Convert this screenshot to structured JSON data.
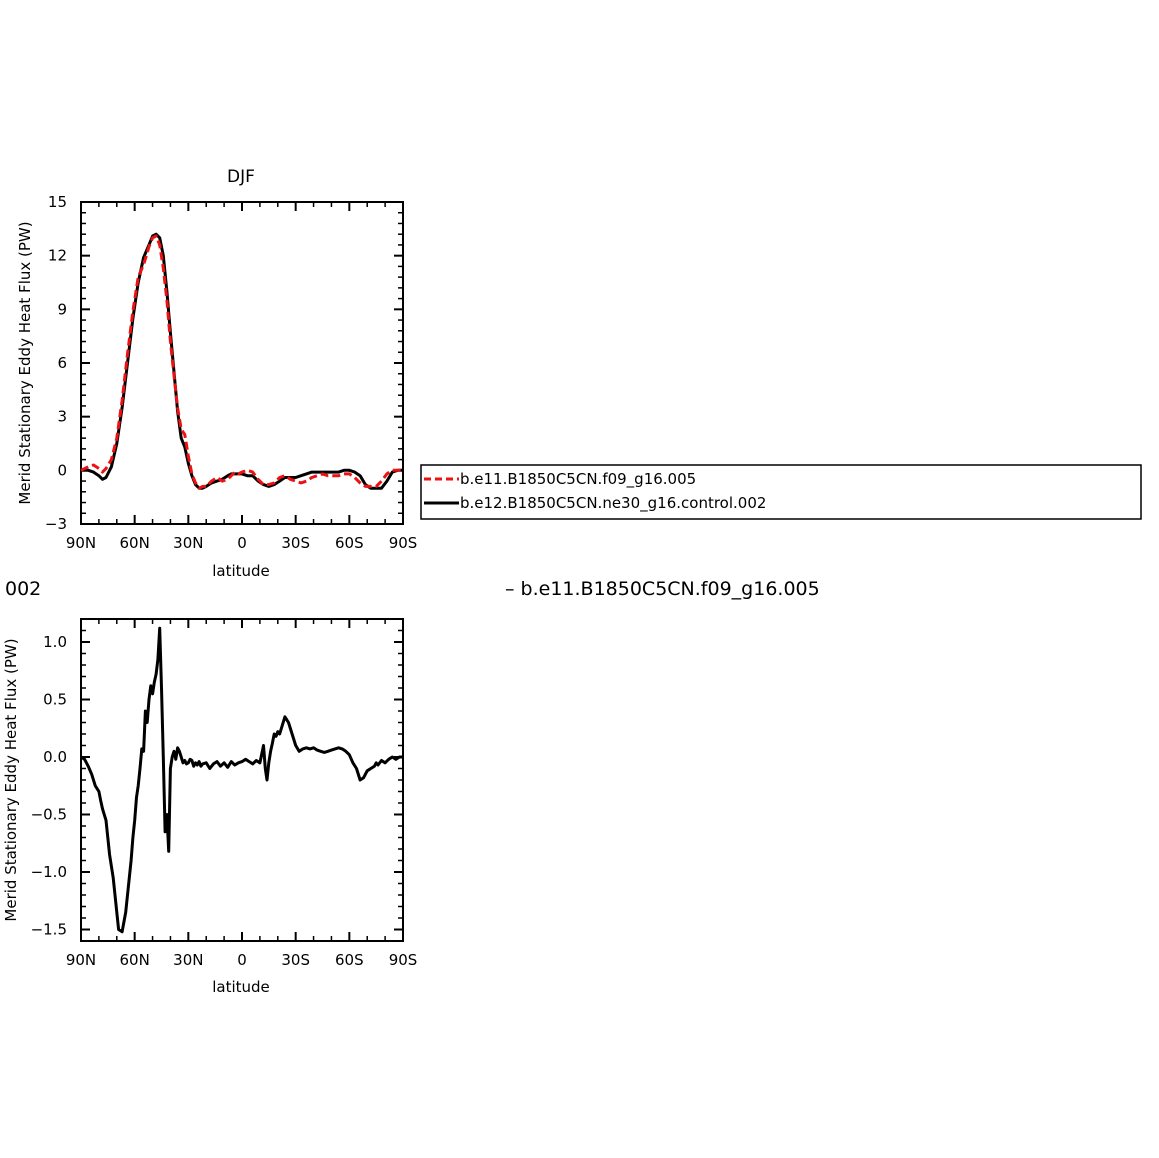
{
  "chart_data": [
    {
      "type": "line",
      "title": "DJF",
      "xlabel": "latitude",
      "ylabel": "Merid Stationary Eddy Heat Flux (PW)",
      "xlim": [
        -90,
        90
      ],
      "ylim": [
        -3,
        15
      ],
      "xticks": [
        -90,
        -60,
        -30,
        0,
        30,
        60,
        90
      ],
      "xtick_labels": [
        "90N",
        "60N",
        "30N",
        "0",
        "30S",
        "60S",
        "90S"
      ],
      "yticks": [
        -3,
        0,
        3,
        6,
        9,
        12,
        15
      ],
      "ytick_labels": [
        "−3",
        "0",
        "3",
        "6",
        "9",
        "12",
        "15"
      ],
      "grid": false,
      "legend_position": "right of plot",
      "series": [
        {
          "name": "b.e11.B1850C5CN.f09_g16.005",
          "color": "#ee1111",
          "dash": true,
          "x": [
            -90,
            -86,
            -83,
            -80,
            -78,
            -76,
            -73,
            -70,
            -67,
            -64,
            -61,
            -58,
            -55,
            -52,
            -50,
            -48,
            -46,
            -44,
            -42,
            -40,
            -38,
            -36,
            -34,
            -32,
            -30,
            -28,
            -26,
            -24,
            -22,
            -20,
            -17,
            -14,
            -11,
            -8,
            -6,
            -4,
            -2,
            0,
            3,
            6,
            9,
            12,
            15,
            18,
            21,
            24,
            27,
            30,
            33,
            36,
            39,
            42,
            45,
            48,
            51,
            54,
            57,
            60,
            63,
            66,
            69,
            72,
            75,
            78,
            81,
            84,
            87,
            90
          ],
          "y": [
            0,
            0.2,
            0.3,
            0.1,
            -0.1,
            0.1,
            0.6,
            1.8,
            3.9,
            6.5,
            8.9,
            10.8,
            11.5,
            12.5,
            13,
            13.1,
            12.6,
            11.3,
            9.5,
            7.2,
            5.3,
            3.5,
            2.3,
            2,
            0.8,
            -0.2,
            -0.7,
            -1,
            -0.9,
            -0.9,
            -0.6,
            -0.4,
            -0.6,
            -0.5,
            -0.3,
            -0.1,
            -0.2,
            -0.1,
            0,
            -0.1,
            -0.5,
            -0.8,
            -0.8,
            -0.7,
            -0.4,
            -0.3,
            -0.5,
            -0.6,
            -0.7,
            -0.6,
            -0.4,
            -0.3,
            -0.2,
            -0.3,
            -0.3,
            -0.3,
            -0.2,
            -0.2,
            -0.4,
            -0.7,
            -0.9,
            -0.9,
            -0.9,
            -0.6,
            -0.2,
            0,
            0,
            0
          ]
        },
        {
          "name": "b.e12.B1850C5CN.ne30_g16.control.002",
          "color": "#000000",
          "dash": false,
          "x": [
            -90,
            -86,
            -83,
            -80,
            -78,
            -76,
            -73,
            -70,
            -67,
            -64,
            -61,
            -58,
            -55,
            -52,
            -50,
            -48,
            -46,
            -44,
            -42,
            -40,
            -38,
            -36,
            -34,
            -32,
            -30,
            -28,
            -26,
            -24,
            -22,
            -20,
            -17,
            -14,
            -11,
            -8,
            -6,
            -4,
            -2,
            0,
            3,
            6,
            9,
            12,
            15,
            18,
            21,
            24,
            27,
            30,
            33,
            36,
            39,
            42,
            45,
            48,
            51,
            54,
            57,
            60,
            63,
            66,
            69,
            72,
            75,
            78,
            81,
            84,
            87,
            90
          ],
          "y": [
            0,
            0,
            -0.1,
            -0.3,
            -0.5,
            -0.4,
            0.2,
            1.5,
            3.5,
            6,
            8.5,
            10.5,
            11.9,
            12.6,
            13.1,
            13.2,
            13,
            12,
            10,
            7.7,
            5.5,
            3.3,
            1.8,
            1.3,
            0.4,
            -0.3,
            -0.8,
            -1,
            -1,
            -0.9,
            -0.7,
            -0.6,
            -0.5,
            -0.3,
            -0.2,
            -0.2,
            -0.2,
            -0.2,
            -0.3,
            -0.3,
            -0.6,
            -0.8,
            -0.9,
            -0.8,
            -0.6,
            -0.4,
            -0.4,
            -0.4,
            -0.3,
            -0.2,
            -0.1,
            -0.1,
            -0.1,
            -0.1,
            -0.1,
            -0.1,
            0,
            0,
            -0.1,
            -0.3,
            -0.8,
            -1,
            -1,
            -1,
            -0.6,
            -0.1,
            0,
            0
          ]
        }
      ]
    },
    {
      "type": "line",
      "title": "",
      "xlabel": "latitude",
      "ylabel": "Merid Stationary Eddy Heat Flux (PW)",
      "xlim": [
        -90,
        90
      ],
      "ylim": [
        -1.6,
        1.2
      ],
      "xticks": [
        -90,
        -60,
        -30,
        0,
        30,
        60,
        90
      ],
      "xtick_labels": [
        "90N",
        "60N",
        "30N",
        "0",
        "30S",
        "60S",
        "90S"
      ],
      "yticks": [
        -1.5,
        -1,
        -0.5,
        0,
        0.5,
        1
      ],
      "ytick_labels": [
        "−1.5",
        "−1.0",
        "−0.5",
        "0.0",
        "0.5",
        "1.0"
      ],
      "grid": false,
      "series": [
        {
          "color": "#000000",
          "x": [
            -90,
            -88,
            -86,
            -84,
            -82,
            -80,
            -79,
            -78,
            -76,
            -74,
            -72,
            -70,
            -69,
            -67,
            -65,
            -64,
            -63,
            -62,
            -61,
            -60,
            -59,
            -58,
            -57,
            -56,
            -55,
            -54,
            -53,
            -52,
            -51,
            -50,
            -49,
            -48,
            -47,
            -46,
            -45,
            -44,
            -43,
            -42,
            -41,
            -40,
            -39,
            -38,
            -37,
            -36,
            -35,
            -34,
            -33,
            -32,
            -31,
            -30,
            -29,
            -28,
            -27,
            -26,
            -25,
            -24,
            -23,
            -22,
            -20,
            -18,
            -16,
            -14,
            -12,
            -10,
            -8,
            -6,
            -4,
            -2,
            0,
            2,
            4,
            6,
            8,
            10,
            12,
            13,
            14,
            15,
            16,
            17,
            18,
            19,
            20,
            21,
            22,
            24,
            26,
            28,
            30,
            32,
            33,
            34,
            36,
            38,
            40,
            42,
            44,
            46,
            48,
            50,
            52,
            54,
            56,
            58,
            60,
            62,
            64,
            66,
            68,
            70,
            72,
            74,
            75,
            76,
            78,
            80,
            82,
            84,
            86,
            88,
            90
          ],
          "y": [
            0,
            -0.02,
            -0.08,
            -0.15,
            -0.25,
            -0.3,
            -0.38,
            -0.45,
            -0.55,
            -0.85,
            -1.05,
            -1.35,
            -1.5,
            -1.52,
            -1.35,
            -1.2,
            -1.05,
            -0.9,
            -0.7,
            -0.55,
            -0.35,
            -0.25,
            -0.1,
            0.07,
            0.05,
            0.4,
            0.3,
            0.5,
            0.62,
            0.55,
            0.65,
            0.72,
            0.85,
            1.12,
            0.6,
            0,
            -0.65,
            -0.5,
            -0.82,
            -0.1,
            0,
            0.05,
            -0.02,
            0.08,
            0.05,
            0,
            -0.05,
            -0.03,
            -0.06,
            -0.05,
            -0.02,
            -0.03,
            -0.08,
            -0.05,
            -0.07,
            -0.04,
            -0.08,
            -0.06,
            -0.05,
            -0.1,
            -0.06,
            -0.04,
            -0.08,
            -0.05,
            -0.09,
            -0.04,
            -0.07,
            -0.05,
            -0.04,
            -0.02,
            -0.04,
            -0.06,
            -0.03,
            -0.05,
            0.1,
            -0.1,
            -0.2,
            -0.05,
            0.05,
            0.12,
            0.2,
            0.18,
            0.22,
            0.2,
            0.25,
            0.35,
            0.3,
            0.2,
            0.1,
            0.05,
            0.06,
            0.07,
            0.08,
            0.07,
            0.08,
            0.06,
            0.05,
            0.04,
            0.05,
            0.06,
            0.07,
            0.08,
            0.07,
            0.05,
            0.02,
            -0.05,
            -0.1,
            -0.2,
            -0.18,
            -0.12,
            -0.1,
            -0.08,
            -0.05,
            -0.07,
            -0.03,
            -0.05,
            -0.02,
            0,
            -0.02,
            0,
            0
          ]
        }
      ]
    }
  ],
  "stray_text": {
    "left_fragment": "002",
    "right_fragment": "– b.e11.B1850C5CN.f09_g16.005"
  }
}
